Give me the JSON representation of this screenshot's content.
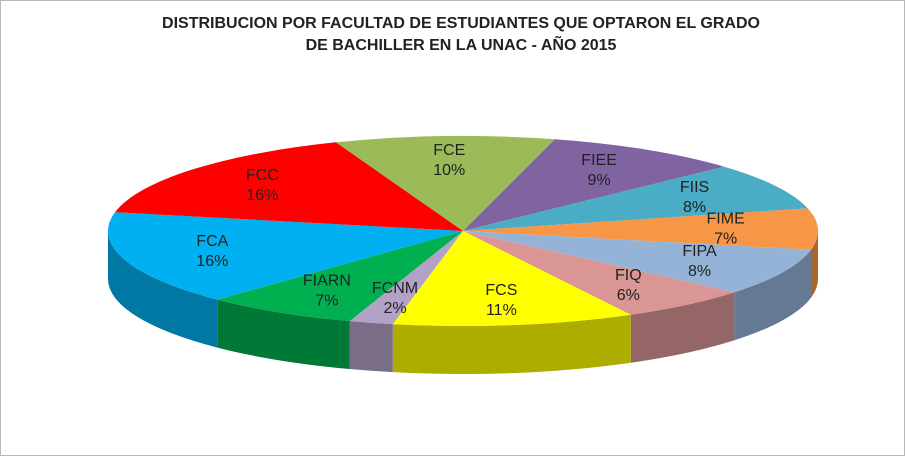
{
  "chart_data": {
    "type": "pie3d",
    "title": "DISTRIBUCION POR FACULTAD DE ESTUDIANTES QUE OPTARON EL GRADO DE BACHILLER EN LA UNAC - AÑO 2015",
    "categories": [
      "FCE",
      "FIEE",
      "FIIS",
      "FIME",
      "FIPA",
      "FIQ",
      "FCS",
      "FCNM",
      "FIARN",
      "FCA",
      "FCC"
    ],
    "values": [
      10,
      9,
      8,
      7,
      8,
      6,
      11,
      2,
      7,
      16,
      16
    ],
    "value_labels": [
      "10%",
      "9%",
      "8%",
      "7%",
      "8%",
      "6%",
      "11%",
      "2%",
      "7%",
      "16%",
      "16%"
    ],
    "colors": [
      "#9bbb59",
      "#8064a2",
      "#4bacc6",
      "#f79646",
      "#95b3d7",
      "#d99694",
      "#ffff00",
      "#b3a2c7",
      "#00b050",
      "#00b0f0",
      "#ff0000"
    ]
  }
}
